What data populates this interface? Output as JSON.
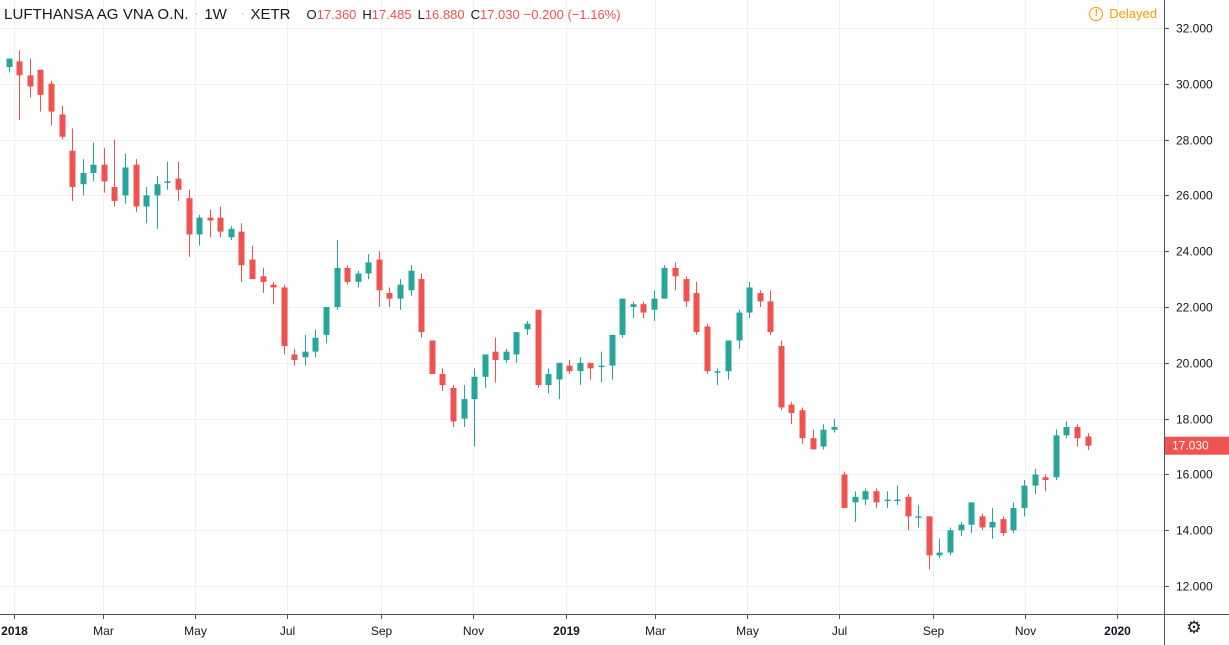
{
  "header": {
    "symbol": "LUFTHANSA AG VNA O.N.",
    "separator": "·",
    "timeframe": "1W",
    "exchange": "XETR",
    "open_label": "O",
    "open": "17.360",
    "high_label": "H",
    "high": "17.485",
    "low_label": "L",
    "low": "16.880",
    "close_label": "C",
    "close": "17.030",
    "change": "−0.200 (−1.16%)"
  },
  "status": {
    "delayed_label": "Delayed",
    "icon": "info-icon"
  },
  "settings": {
    "icon": "gear-icon"
  },
  "colors": {
    "up": "#26a69a",
    "down": "#ef5350",
    "grid": "#eef0f3",
    "axis": "#50535e",
    "accent": "#ff9800"
  },
  "chart_data": {
    "type": "candlestick",
    "title": "LUFTHANSA AG VNA O.N.",
    "timeframe": "1W",
    "ylim": [
      11.0,
      33.0
    ],
    "y_ticks": [
      12,
      14,
      16,
      18,
      20,
      22,
      24,
      26,
      28,
      30,
      32
    ],
    "y_tick_labels": [
      "12.000",
      "14.000",
      "16.000",
      "18.000",
      "20.000",
      "22.000",
      "24.000",
      "26.000",
      "28.000",
      "30.000",
      "32.000"
    ],
    "x_ticks": [
      {
        "label": "2018",
        "date": "2018-01-01",
        "bold": true
      },
      {
        "label": "Mar",
        "date": "2018-03-01"
      },
      {
        "label": "May",
        "date": "2018-05-01"
      },
      {
        "label": "Jul",
        "date": "2018-07-01"
      },
      {
        "label": "Sep",
        "date": "2018-09-01"
      },
      {
        "label": "Nov",
        "date": "2018-11-01"
      },
      {
        "label": "2019",
        "date": "2019-01-01",
        "bold": true
      },
      {
        "label": "Mar",
        "date": "2019-03-01"
      },
      {
        "label": "May",
        "date": "2019-05-01"
      },
      {
        "label": "Jul",
        "date": "2019-07-01"
      },
      {
        "label": "Sep",
        "date": "2019-09-01"
      },
      {
        "label": "Nov",
        "date": "2019-11-01"
      },
      {
        "label": "2020",
        "date": "2020-01-01",
        "bold": true
      }
    ],
    "first_week": "2017-12-25",
    "last_price": 17.03,
    "last_price_label": "17.030",
    "grid": true,
    "candles": [
      [
        30.6,
        30.9,
        30.4,
        30.9
      ],
      [
        30.8,
        31.2,
        28.7,
        30.3
      ],
      [
        30.3,
        30.9,
        29.5,
        29.9
      ],
      [
        30.5,
        30.5,
        29.0,
        29.6
      ],
      [
        30.0,
        30.1,
        28.5,
        29.0
      ],
      [
        28.9,
        29.2,
        28.0,
        28.1
      ],
      [
        27.6,
        28.4,
        25.8,
        26.3
      ],
      [
        26.4,
        27.3,
        26.0,
        26.8
      ],
      [
        26.8,
        27.9,
        26.5,
        27.1
      ],
      [
        27.1,
        27.7,
        26.1,
        26.5
      ],
      [
        26.3,
        28.0,
        25.6,
        25.8
      ],
      [
        26.0,
        27.5,
        25.7,
        27.0
      ],
      [
        27.1,
        27.3,
        25.4,
        25.6
      ],
      [
        25.6,
        26.3,
        25.0,
        26.0
      ],
      [
        26.0,
        26.7,
        24.8,
        26.4
      ],
      [
        26.5,
        27.2,
        26.2,
        26.5
      ],
      [
        26.6,
        27.2,
        25.8,
        26.2
      ],
      [
        25.9,
        26.2,
        23.8,
        24.6
      ],
      [
        24.6,
        25.3,
        24.2,
        25.2
      ],
      [
        25.2,
        25.5,
        24.5,
        25.1
      ],
      [
        25.2,
        25.6,
        24.5,
        24.7
      ],
      [
        24.5,
        24.9,
        24.4,
        24.8
      ],
      [
        24.7,
        25.0,
        22.9,
        23.5
      ],
      [
        23.7,
        24.2,
        23.0,
        23.0
      ],
      [
        23.1,
        23.4,
        22.5,
        22.9
      ],
      [
        22.8,
        22.9,
        22.1,
        22.7
      ],
      [
        22.7,
        22.8,
        20.3,
        20.6
      ],
      [
        20.3,
        20.5,
        19.9,
        20.1
      ],
      [
        20.2,
        21.0,
        19.9,
        20.4
      ],
      [
        20.4,
        21.2,
        20.2,
        20.9
      ],
      [
        21.0,
        21.9,
        20.7,
        22.0
      ],
      [
        22.0,
        24.4,
        21.9,
        23.4
      ],
      [
        23.4,
        23.5,
        22.8,
        22.9
      ],
      [
        22.9,
        23.3,
        22.7,
        23.2
      ],
      [
        23.2,
        23.9,
        23.0,
        23.6
      ],
      [
        23.7,
        24.0,
        22.0,
        22.6
      ],
      [
        22.5,
        22.7,
        22.0,
        22.3
      ],
      [
        22.3,
        23.0,
        21.9,
        22.8
      ],
      [
        22.6,
        23.5,
        22.4,
        23.3
      ],
      [
        23.0,
        23.2,
        20.9,
        21.1
      ],
      [
        20.8,
        20.8,
        19.6,
        19.6
      ],
      [
        19.6,
        19.8,
        19.0,
        19.2
      ],
      [
        19.1,
        19.2,
        17.7,
        17.9
      ],
      [
        18.0,
        19.2,
        17.7,
        18.7
      ],
      [
        18.7,
        19.8,
        17.0,
        19.5
      ],
      [
        19.5,
        20.3,
        19.1,
        20.3
      ],
      [
        20.4,
        20.9,
        19.3,
        20.1
      ],
      [
        20.1,
        20.5,
        20.0,
        20.4
      ],
      [
        20.3,
        21.1,
        20.0,
        21.1
      ],
      [
        21.2,
        21.5,
        21.0,
        21.4
      ],
      [
        21.9,
        21.9,
        19.1,
        19.2
      ],
      [
        19.2,
        19.8,
        18.9,
        19.6
      ],
      [
        19.4,
        20.0,
        18.7,
        20.0
      ],
      [
        19.9,
        20.1,
        19.6,
        19.7
      ],
      [
        19.7,
        20.2,
        19.2,
        20.0
      ],
      [
        20.0,
        20.0,
        19.4,
        19.8
      ],
      [
        19.9,
        20.4,
        19.3,
        19.9
      ],
      [
        19.9,
        21.0,
        19.4,
        21.0
      ],
      [
        21.0,
        22.2,
        20.9,
        22.3
      ],
      [
        22.0,
        22.2,
        21.6,
        22.1
      ],
      [
        22.1,
        22.2,
        21.6,
        21.8
      ],
      [
        21.9,
        22.6,
        21.5,
        22.3
      ],
      [
        22.3,
        23.5,
        22.3,
        23.4
      ],
      [
        23.4,
        23.6,
        22.6,
        23.1
      ],
      [
        23.0,
        23.1,
        22.0,
        22.2
      ],
      [
        22.5,
        22.9,
        21.0,
        21.1
      ],
      [
        21.3,
        21.4,
        19.6,
        19.7
      ],
      [
        19.7,
        19.8,
        19.2,
        19.7
      ],
      [
        19.7,
        20.8,
        19.4,
        20.8
      ],
      [
        20.8,
        21.9,
        20.5,
        21.8
      ],
      [
        21.8,
        22.9,
        21.6,
        22.7
      ],
      [
        22.5,
        22.6,
        22.0,
        22.2
      ],
      [
        22.2,
        22.6,
        21.0,
        21.1
      ],
      [
        20.6,
        20.8,
        18.3,
        18.4
      ],
      [
        18.5,
        18.6,
        17.8,
        18.2
      ],
      [
        18.3,
        18.4,
        17.1,
        17.3
      ],
      [
        17.3,
        17.6,
        16.9,
        16.9
      ],
      [
        17.0,
        17.8,
        16.9,
        17.6
      ],
      [
        17.6,
        18.0,
        17.5,
        17.7
      ],
      [
        16.0,
        16.1,
        14.8,
        14.8
      ],
      [
        15.0,
        15.4,
        14.3,
        15.2
      ],
      [
        15.1,
        15.5,
        14.9,
        15.4
      ],
      [
        15.4,
        15.5,
        14.8,
        15.0
      ],
      [
        15.1,
        15.4,
        14.8,
        15.1
      ],
      [
        15.1,
        15.6,
        14.9,
        15.1
      ],
      [
        15.2,
        15.3,
        14.0,
        14.5
      ],
      [
        14.5,
        14.9,
        14.1,
        14.5
      ],
      [
        14.5,
        14.5,
        12.6,
        13.1
      ],
      [
        13.1,
        13.7,
        13.0,
        13.2
      ],
      [
        13.2,
        14.1,
        13.1,
        14.0
      ],
      [
        14.0,
        14.3,
        13.8,
        14.2
      ],
      [
        14.2,
        15.0,
        13.9,
        15.0
      ],
      [
        14.5,
        14.6,
        14.0,
        14.1
      ],
      [
        14.1,
        14.8,
        13.7,
        14.3
      ],
      [
        14.4,
        14.5,
        13.8,
        13.9
      ],
      [
        14.0,
        15.0,
        13.9,
        14.8
      ],
      [
        14.8,
        15.8,
        14.5,
        15.6
      ],
      [
        15.6,
        16.2,
        15.3,
        16.0
      ],
      [
        15.9,
        16.0,
        15.4,
        15.8
      ],
      [
        15.9,
        17.6,
        15.8,
        17.4
      ],
      [
        17.4,
        17.9,
        17.3,
        17.7
      ],
      [
        17.7,
        17.8,
        17.0,
        17.3
      ],
      [
        17.36,
        17.485,
        16.88,
        17.03
      ]
    ]
  }
}
